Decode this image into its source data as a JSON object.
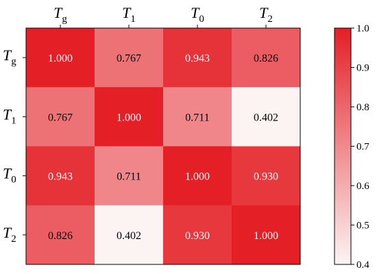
{
  "chart_data": {
    "type": "heatmap",
    "row_labels": [
      {
        "base": "T",
        "sub": "g"
      },
      {
        "base": "T",
        "sub": "1"
      },
      {
        "base": "T",
        "sub": "0"
      },
      {
        "base": "T",
        "sub": "2"
      }
    ],
    "col_labels": [
      {
        "base": "T",
        "sub": "g"
      },
      {
        "base": "T",
        "sub": "1"
      },
      {
        "base": "T",
        "sub": "0"
      },
      {
        "base": "T",
        "sub": "2"
      }
    ],
    "values": [
      [
        1.0,
        0.767,
        0.943,
        0.826
      ],
      [
        0.767,
        1.0,
        0.711,
        0.402
      ],
      [
        0.943,
        0.711,
        1.0,
        0.93
      ],
      [
        0.826,
        0.402,
        0.93,
        1.0
      ]
    ],
    "value_labels": [
      [
        "1.000",
        "0.767",
        "0.943",
        "0.826"
      ],
      [
        "0.767",
        "1.000",
        "0.711",
        "0.402"
      ],
      [
        "0.943",
        "0.711",
        "1.000",
        "0.930"
      ],
      [
        "0.826",
        "0.402",
        "0.930",
        "1.000"
      ]
    ],
    "colorbar": {
      "range": [
        0.4,
        1.0
      ],
      "ticks": [
        0.4,
        0.5,
        0.6,
        0.7,
        0.8,
        0.9,
        1.0
      ],
      "tick_labels": [
        "0.4",
        "0.5",
        "0.6",
        "0.7",
        "0.8",
        "0.9",
        "1.0"
      ],
      "color_low": "#fcf4f4",
      "color_high": "#e41f26"
    }
  }
}
